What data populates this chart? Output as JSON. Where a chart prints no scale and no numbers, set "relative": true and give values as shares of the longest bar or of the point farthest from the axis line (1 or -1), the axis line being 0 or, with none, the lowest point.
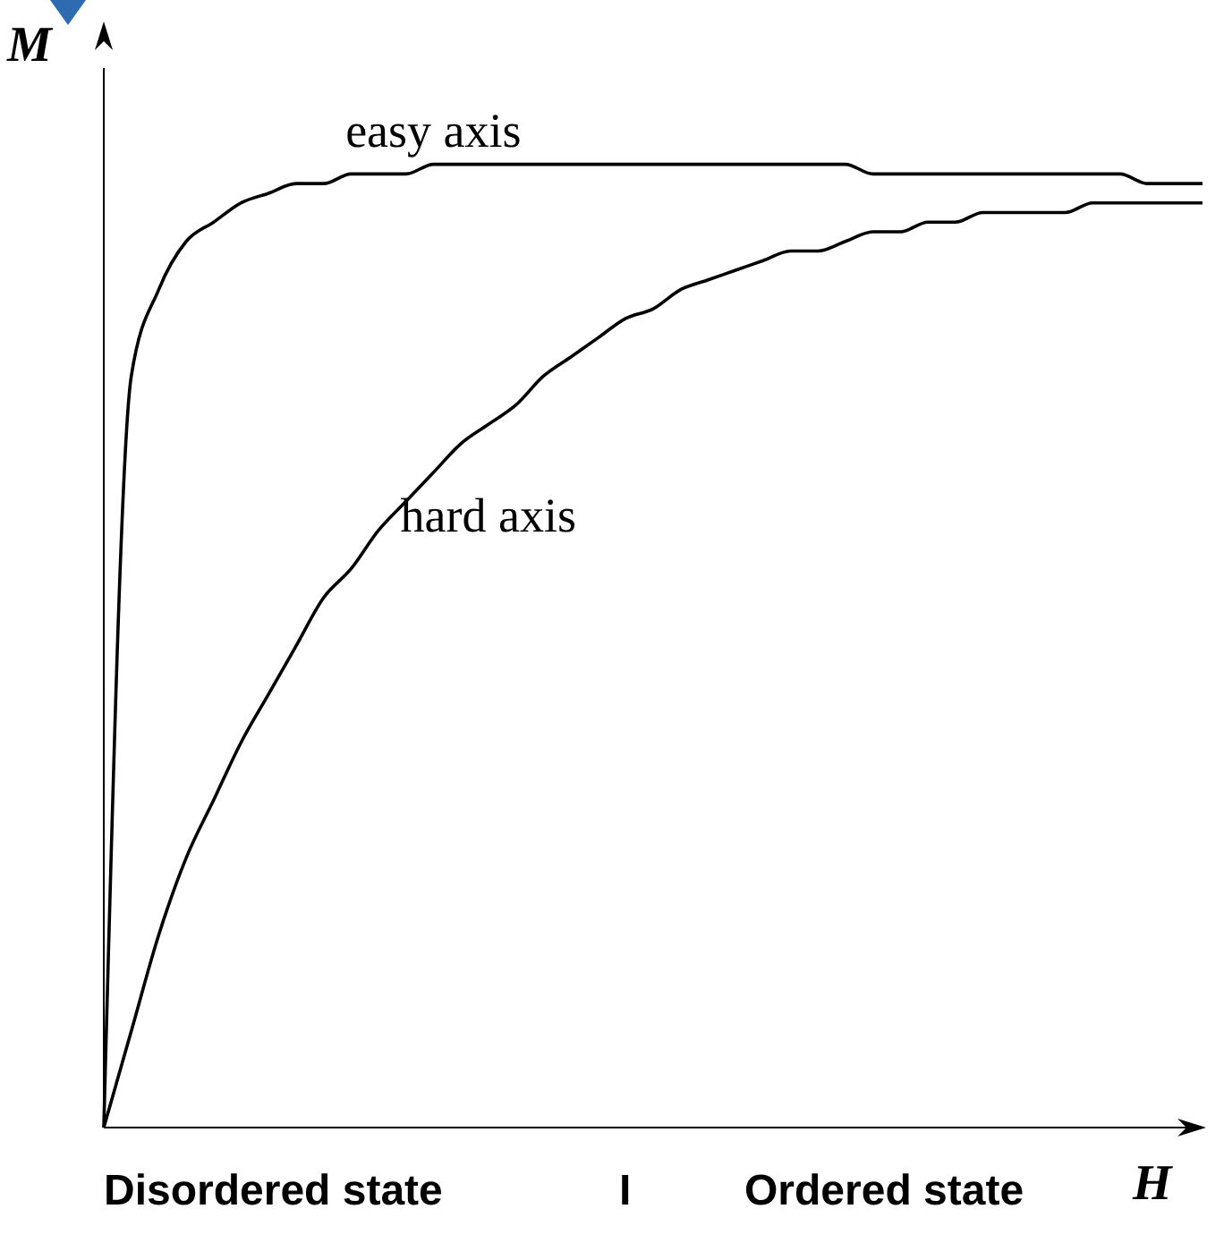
{
  "chart_data": {
    "type": "line",
    "relative": true,
    "xlabel": "H",
    "ylabel": "M",
    "annotations": [
      "Disordered state",
      "I",
      "Ordered state"
    ],
    "categories": [
      null,
      null,
      null,
      null,
      null,
      null,
      null,
      null,
      null,
      null,
      null,
      null,
      null,
      null,
      null,
      null,
      null,
      null,
      null,
      null,
      null,
      null,
      null,
      null,
      null,
      null,
      null,
      null,
      null,
      null,
      null,
      null,
      null,
      null,
      null,
      null,
      null,
      null,
      null,
      null,
      null
    ],
    "series": [
      {
        "name": "easy axis",
        "color": "#000000",
        "values": [
          0,
          0.78,
          0.87,
          0.92,
          0.94,
          0.96,
          0.97,
          0.98,
          0.98,
          0.99,
          0.99,
          0.99,
          1,
          1,
          1,
          1,
          1,
          1,
          1,
          1,
          1,
          1,
          1,
          1,
          1,
          1,
          1,
          1,
          0.99,
          0.99,
          0.99,
          0.99,
          0.99,
          0.99,
          0.99,
          0.99,
          0.99,
          0.99,
          0.98,
          0.98,
          0.98
        ]
      },
      {
        "name": "hard axis",
        "color": "#000000",
        "values": [
          0,
          0.1,
          0.2,
          0.28,
          0.34,
          0.4,
          0.45,
          0.5,
          0.55,
          0.58,
          0.62,
          0.65,
          0.68,
          0.71,
          0.73,
          0.75,
          0.78,
          0.8,
          0.82,
          0.84,
          0.85,
          0.87,
          0.88,
          0.89,
          0.9,
          0.91,
          0.91,
          0.92,
          0.93,
          0.93,
          0.94,
          0.94,
          0.95,
          0.95,
          0.95,
          0.95,
          0.96,
          0.96,
          0.96,
          0.96,
          0.96
        ]
      }
    ]
  }
}
